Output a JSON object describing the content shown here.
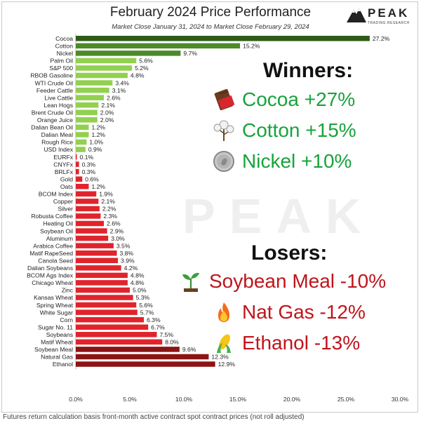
{
  "title": "February 2024 Price Performance",
  "subtitle": "Market Close January 31, 2024 to Market Close February 29, 2024",
  "logo": {
    "name": "PEAK",
    "tagline": "TRADING RESEARCH"
  },
  "watermark": "PEAK",
  "footnote": "Futures return calculation basis front-month active contract spot contract prices (not roll adjusted)",
  "winners": {
    "heading": "Winners:",
    "items": [
      {
        "label": "Cocoa +27%",
        "icon": "chocolate-icon"
      },
      {
        "label": "Cotton +15%",
        "icon": "cotton-icon"
      },
      {
        "label": "Nickel +10%",
        "icon": "coin-icon"
      }
    ]
  },
  "losers": {
    "heading": "Losers:",
    "items": [
      {
        "label": "Soybean Meal -10%",
        "icon": "seedling-icon"
      },
      {
        "label": "Nat Gas -12%",
        "icon": "fire-icon"
      },
      {
        "label": "Ethanol -13%",
        "icon": "corn-icon"
      }
    ]
  },
  "colors": {
    "top_green": "#2e5b18",
    "mid_green": "#4d8a2a",
    "light_green": "#92d050",
    "red": "#e0242c",
    "dark_red": "#8b1414",
    "winner_text": "#18a33c",
    "loser_text": "#c0141c"
  },
  "chart_data": {
    "type": "bar",
    "orientation": "horizontal",
    "title": "February 2024 Price Performance",
    "xlim": [
      0,
      30
    ],
    "xticks": [
      "0.0%",
      "5.0%",
      "10.0%",
      "15.0%",
      "20.0%",
      "25.0%",
      "30.0%"
    ],
    "grid": false,
    "categories": [
      "Cocoa",
      "Cotton",
      "Nickel",
      "Palm Oil",
      "S&P 500",
      "RBOB Gasoline",
      "WTI Crude Oil",
      "Feeder Cattle",
      "Live Cattle",
      "Lean Hogs",
      "Brent Crude Oil",
      "Orange Juice",
      "Dalian Bean Oil",
      "Dalian Meal",
      "Rough Rice",
      "USD Index",
      "EURFx",
      "CNYFx",
      "BRLFx",
      "Gold",
      "Oats",
      "BCOM Index",
      "Copper",
      "Silver",
      "Robusta Coffee",
      "Heating Oil",
      "Soybean Oil",
      "Aluminum",
      "Arabica Coffee",
      "Matif RapeSeed",
      "Canola Seed",
      "Dalian Soybeans",
      "BCOM Ags Index",
      "Chicago Wheat",
      "Zinc",
      "Kansas Wheat",
      "Spring Wheat",
      "White Sugar",
      "Corn",
      "Sugar No. 11",
      "Soybeans",
      "Matif Wheat",
      "Soybean Meal",
      "Natural Gas",
      "Ethanol"
    ],
    "values": [
      27.2,
      15.2,
      9.7,
      5.6,
      5.2,
      4.8,
      3.4,
      3.1,
      2.6,
      2.1,
      2.0,
      2.0,
      1.2,
      1.2,
      1.0,
      0.9,
      0.1,
      0.3,
      0.3,
      0.6,
      1.2,
      1.9,
      2.1,
      2.2,
      2.3,
      2.6,
      2.9,
      3.0,
      3.5,
      3.8,
      3.9,
      4.2,
      4.8,
      4.8,
      5.0,
      5.3,
      5.6,
      5.7,
      6.3,
      6.7,
      7.5,
      8.0,
      9.6,
      12.3,
      12.9
    ],
    "value_labels": [
      "27.2%",
      "15.2%",
      "9.7%",
      "5.6%",
      "5.2%",
      "4.8%",
      "3.4%",
      "3.1%",
      "2.6%",
      "2.1%",
      "2.0%",
      "2.0%",
      "1.2%",
      "1.2%",
      "1.0%",
      "0.9%",
      "0.1%",
      "0.3%",
      "0.3%",
      "0.6%",
      "1.2%",
      "1.9%",
      "2.1%",
      "2.2%",
      "2.3%",
      "2.6%",
      "2.9%",
      "3.0%",
      "3.5%",
      "3.8%",
      "3.9%",
      "4.2%",
      "4.8%",
      "4.8%",
      "5.0%",
      "5.3%",
      "5.6%",
      "5.7%",
      "6.3%",
      "6.7%",
      "7.5%",
      "8.0%",
      "9.6%",
      "12.3%",
      "12.9%"
    ],
    "direction": [
      "gain",
      "gain",
      "gain",
      "gain",
      "gain",
      "gain",
      "gain",
      "gain",
      "gain",
      "gain",
      "gain",
      "gain",
      "gain",
      "gain",
      "gain",
      "gain",
      "loss",
      "loss",
      "loss",
      "loss",
      "loss",
      "loss",
      "loss",
      "loss",
      "loss",
      "loss",
      "loss",
      "loss",
      "loss",
      "loss",
      "loss",
      "loss",
      "loss",
      "loss",
      "loss",
      "loss",
      "loss",
      "loss",
      "loss",
      "loss",
      "loss",
      "loss",
      "loss",
      "loss",
      "loss"
    ]
  }
}
